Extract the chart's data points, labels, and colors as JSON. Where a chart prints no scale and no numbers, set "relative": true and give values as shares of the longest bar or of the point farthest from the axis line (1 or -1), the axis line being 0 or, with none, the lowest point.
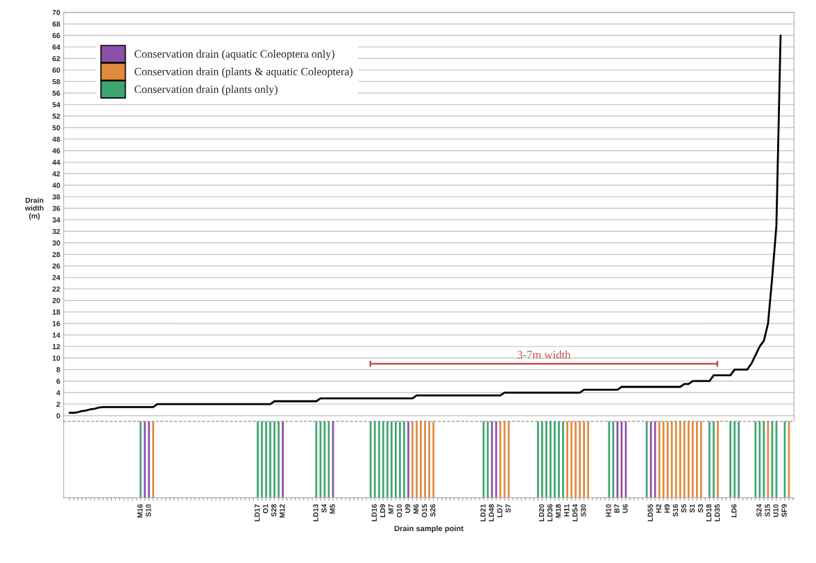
{
  "chart_data": [
    {
      "type": "line",
      "ylabel": "Drain\nwidth\n(m)",
      "ylim": [
        -1,
        70
      ],
      "yticks": [
        0,
        2,
        4,
        6,
        8,
        10,
        12,
        14,
        16,
        18,
        20,
        22,
        24,
        26,
        28,
        30,
        32,
        34,
        36,
        38,
        40,
        42,
        44,
        46,
        48,
        50,
        52,
        54,
        56,
        58,
        60,
        62,
        64,
        66,
        68,
        70
      ],
      "grid": "y",
      "tick_labels": "y",
      "ref_lines": [
        {
          "axis": "y",
          "value": 9,
          "label": "3-7m width",
          "color": "#c0504d"
        }
      ],
      "categories": [
        null,
        null,
        null,
        null,
        null,
        null,
        null,
        null,
        null,
        null,
        null,
        null,
        null,
        null,
        null,
        null,
        null,
        null,
        null,
        null,
        null,
        null,
        null,
        null,
        null,
        null,
        null,
        null,
        null,
        null,
        null,
        null,
        null,
        null,
        null,
        null,
        null,
        null,
        null,
        null,
        null,
        null,
        null,
        null,
        null,
        null,
        null,
        null,
        null,
        null,
        null,
        null,
        null,
        null,
        null,
        null,
        null,
        null,
        null,
        null,
        null,
        null,
        null,
        null,
        null,
        null,
        null,
        null,
        null,
        null,
        null,
        null,
        null,
        null,
        null,
        null,
        null,
        null,
        null,
        null,
        null,
        null,
        null,
        null,
        null,
        null,
        null,
        null,
        null,
        null,
        null,
        null,
        null,
        null,
        null,
        null,
        null,
        null,
        null,
        null,
        null,
        null,
        null,
        null,
        null,
        null,
        null,
        null,
        null,
        null,
        null,
        null,
        null,
        null,
        null,
        null,
        null,
        null,
        null,
        null,
        null,
        null,
        null,
        null,
        null,
        null,
        null,
        null,
        null,
        null,
        null,
        null,
        null,
        null,
        null,
        null,
        null,
        null,
        null,
        null,
        null,
        null,
        null,
        null,
        null,
        null,
        null,
        null,
        null,
        null,
        null,
        null,
        null,
        null,
        null,
        null,
        null,
        null,
        null,
        null,
        null,
        null,
        null,
        null,
        null,
        null,
        null,
        null,
        null,
        null,
        null,
        null,
        null,
        null
      ],
      "series": [
        {
          "color": "#000000",
          "values": [
            0.5,
            0.5,
            0.6,
            0.8,
            0.9,
            1.1,
            1.2,
            1.4,
            1.5,
            1.5,
            1.5,
            1.5,
            1.5,
            1.5,
            1.5,
            1.5,
            1.5,
            1.5,
            1.5,
            1.5,
            1.5,
            2,
            2,
            2,
            2,
            2,
            2,
            2,
            2,
            2,
            2,
            2,
            2,
            2,
            2,
            2,
            2,
            2,
            2,
            2,
            2,
            2,
            2,
            2,
            2,
            2,
            2,
            2,
            2,
            2.5,
            2.5,
            2.5,
            2.5,
            2.5,
            2.5,
            2.5,
            2.5,
            2.5,
            2.5,
            2.5,
            3,
            3,
            3,
            3,
            3,
            3,
            3,
            3,
            3,
            3,
            3,
            3,
            3,
            3,
            3,
            3,
            3,
            3,
            3,
            3,
            3,
            3,
            3,
            3.5,
            3.5,
            3.5,
            3.5,
            3.5,
            3.5,
            3.5,
            3.5,
            3.5,
            3.5,
            3.5,
            3.5,
            3.5,
            3.5,
            3.5,
            3.5,
            3.5,
            3.5,
            3.5,
            3.5,
            3.5,
            4,
            4,
            4,
            4,
            4,
            4,
            4,
            4,
            4,
            4,
            4,
            4,
            4,
            4,
            4,
            4,
            4,
            4,
            4,
            4.5,
            4.5,
            4.5,
            4.5,
            4.5,
            4.5,
            4.5,
            4.5,
            4.5,
            5,
            5,
            5,
            5,
            5,
            5,
            5,
            5,
            5,
            5,
            5,
            5,
            5,
            5,
            5,
            5.5,
            5.5,
            6,
            6,
            6,
            6,
            6,
            7,
            7,
            7,
            7,
            7,
            8,
            8,
            8,
            8,
            9,
            10.5,
            12,
            13,
            16,
            24,
            33,
            66,
            null,
            null,
            null
          ]
        }
      ]
    },
    {
      "type": "bar",
      "relative": true,
      "xlabel": "Drain sample point",
      "legend": "top left",
      "tick_labels": "x",
      "categories": [
        null,
        null,
        null,
        null,
        null,
        null,
        null,
        null,
        null,
        null,
        null,
        null,
        null,
        null,
        null,
        null,
        null,
        "M16",
        null,
        "S10",
        null,
        null,
        null,
        null,
        null,
        null,
        null,
        null,
        null,
        null,
        null,
        null,
        null,
        null,
        null,
        null,
        null,
        null,
        null,
        null,
        null,
        null,
        null,
        null,
        null,
        "LD17",
        null,
        "O1",
        null,
        "S28",
        null,
        "M12",
        null,
        null,
        null,
        null,
        null,
        null,
        null,
        "LD13",
        null,
        "S4",
        null,
        "M5",
        null,
        null,
        null,
        null,
        null,
        null,
        null,
        null,
        null,
        "LD16",
        null,
        "LD9",
        null,
        "M7",
        null,
        "O10",
        null,
        "U9",
        null,
        "M6",
        null,
        "O15",
        null,
        "S26",
        null,
        null,
        null,
        null,
        null,
        null,
        null,
        null,
        null,
        null,
        null,
        "LD21",
        null,
        "LD48",
        null,
        "LD7",
        null,
        "S7",
        null,
        null,
        null,
        null,
        null,
        null,
        null,
        "LD20",
        null,
        "LD36",
        null,
        "M18",
        null,
        "H11",
        null,
        "LD54",
        null,
        "S30",
        null,
        null,
        null,
        null,
        null,
        "H10",
        null,
        "B7",
        null,
        "U6",
        null,
        null,
        null,
        null,
        null,
        "LD55",
        null,
        "H2",
        null,
        "H9",
        null,
        "S16",
        null,
        "S5",
        null,
        "S1",
        null,
        "S3",
        null,
        "LD18",
        null,
        "LD35",
        null,
        null,
        null,
        "LD6",
        null,
        null,
        null,
        null,
        null,
        "S24",
        null,
        "S15",
        null,
        "U10",
        null,
        "SF9",
        null,
        null
      ],
      "series": [
        {
          "name": "Conservation drain (aquatic Coleoptera only)",
          "color": "#8a4fa8",
          "values": [
            null,
            null,
            null,
            null,
            null,
            null,
            null,
            null,
            null,
            null,
            null,
            null,
            null,
            null,
            null,
            null,
            null,
            null,
            -1,
            -1,
            null,
            null,
            null,
            null,
            null,
            null,
            null,
            null,
            null,
            null,
            null,
            null,
            null,
            null,
            null,
            null,
            null,
            null,
            null,
            null,
            null,
            null,
            null,
            null,
            null,
            null,
            null,
            null,
            null,
            null,
            null,
            -1,
            null,
            null,
            null,
            null,
            null,
            null,
            null,
            null,
            null,
            null,
            null,
            -1,
            null,
            null,
            null,
            null,
            null,
            null,
            null,
            null,
            null,
            null,
            null,
            null,
            null,
            null,
            null,
            null,
            null,
            -1,
            null,
            null,
            null,
            null,
            null,
            null,
            null,
            null,
            null,
            null,
            null,
            null,
            null,
            null,
            null,
            null,
            null,
            null,
            null,
            -1,
            -1,
            null,
            null,
            null,
            null,
            null,
            null,
            null,
            null,
            null,
            null,
            null,
            null,
            null,
            null,
            null,
            null,
            null,
            null,
            null,
            null,
            null,
            null,
            null,
            null,
            null,
            null,
            null,
            null,
            -1,
            -1,
            -1,
            null,
            null,
            null,
            null,
            null,
            -1,
            -1,
            null,
            null,
            null,
            null,
            null,
            null,
            null,
            null,
            null,
            null,
            null,
            null,
            null,
            null,
            null,
            null,
            null,
            null,
            null,
            null,
            null,
            null,
            null,
            null,
            null,
            null,
            null,
            null,
            null,
            null,
            null,
            null,
            null
          ]
        },
        {
          "name": "Conservation drain (plants & aquatic Coleoptera)",
          "color": "#e08a3c",
          "values": [
            null,
            null,
            null,
            null,
            null,
            null,
            null,
            null,
            null,
            null,
            null,
            null,
            null,
            null,
            null,
            null,
            null,
            null,
            null,
            null,
            -1,
            null,
            null,
            null,
            null,
            null,
            null,
            null,
            null,
            null,
            null,
            null,
            null,
            null,
            null,
            null,
            null,
            null,
            null,
            null,
            null,
            null,
            null,
            null,
            null,
            null,
            null,
            null,
            null,
            null,
            null,
            null,
            null,
            null,
            null,
            null,
            null,
            null,
            null,
            null,
            null,
            null,
            null,
            null,
            null,
            null,
            null,
            null,
            null,
            null,
            null,
            null,
            null,
            null,
            null,
            null,
            null,
            null,
            null,
            null,
            null,
            null,
            -1,
            -1,
            -1,
            -1,
            -1,
            -1,
            null,
            null,
            null,
            null,
            null,
            null,
            null,
            null,
            null,
            null,
            null,
            null,
            null,
            null,
            null,
            -1,
            -1,
            -1,
            null,
            null,
            null,
            null,
            null,
            null,
            null,
            null,
            null,
            null,
            null,
            null,
            null,
            -1,
            -1,
            -1,
            -1,
            -1,
            -1,
            null,
            null,
            null,
            null,
            null,
            null,
            null,
            null,
            null,
            null,
            null,
            null,
            null,
            null,
            null,
            null,
            -1,
            -1,
            -1,
            -1,
            -1,
            -1,
            -1,
            -1,
            -1,
            -1,
            -1,
            null,
            null,
            null,
            -1,
            null,
            null,
            null,
            null,
            null,
            null,
            null,
            null,
            null,
            null,
            null,
            -1,
            null,
            null,
            null,
            null,
            -1,
            null
          ]
        },
        {
          "name": "Conservation drain (plants only)",
          "color": "#3da56f",
          "values": [
            null,
            null,
            null,
            null,
            null,
            null,
            null,
            null,
            null,
            null,
            null,
            null,
            null,
            null,
            null,
            null,
            null,
            -1,
            null,
            null,
            null,
            null,
            null,
            null,
            null,
            null,
            null,
            null,
            null,
            null,
            null,
            null,
            null,
            null,
            null,
            null,
            null,
            null,
            null,
            null,
            null,
            null,
            null,
            null,
            null,
            -1,
            -1,
            -1,
            -1,
            -1,
            -1,
            null,
            null,
            null,
            null,
            null,
            null,
            null,
            null,
            -1,
            -1,
            -1,
            -1,
            null,
            null,
            null,
            null,
            null,
            null,
            null,
            null,
            null,
            -1,
            -1,
            -1,
            -1,
            -1,
            -1,
            -1,
            -1,
            -1,
            null,
            null,
            null,
            null,
            null,
            null,
            null,
            null,
            null,
            null,
            null,
            null,
            null,
            null,
            null,
            null,
            null,
            null,
            -1,
            -1,
            null,
            null,
            null,
            null,
            null,
            null,
            null,
            null,
            null,
            null,
            null,
            -1,
            -1,
            -1,
            -1,
            -1,
            -1,
            -1,
            null,
            null,
            null,
            null,
            null,
            null,
            null,
            null,
            null,
            null,
            -1,
            -1,
            null,
            null,
            null,
            null,
            null,
            null,
            null,
            -1,
            null,
            null,
            null,
            null,
            null,
            null,
            null,
            null,
            null,
            null,
            null,
            null,
            null,
            null,
            -1,
            -1,
            null,
            null,
            null,
            -1,
            -1,
            -1,
            null,
            null,
            null,
            -1,
            -1,
            -1,
            null,
            -1,
            -1,
            null,
            -1,
            null,
            null
          ]
        }
      ]
    }
  ]
}
